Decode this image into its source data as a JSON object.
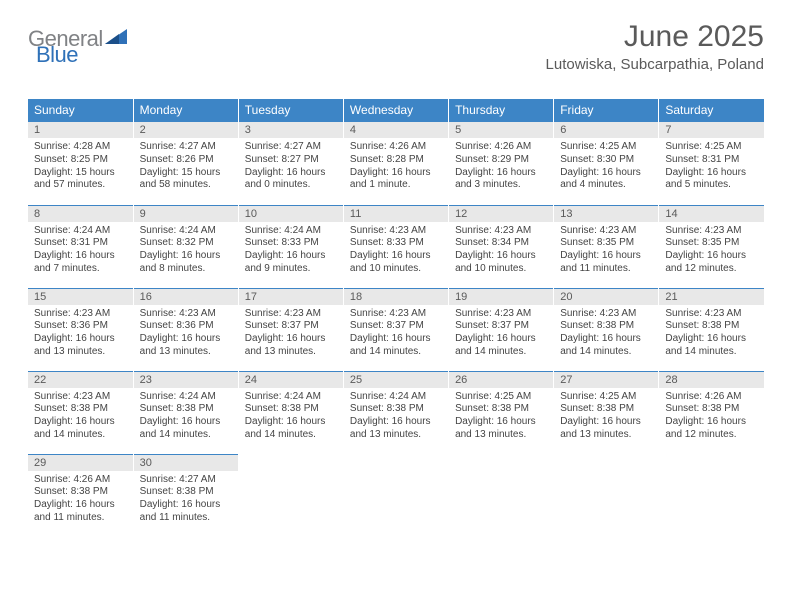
{
  "brand": {
    "part1": "General",
    "part2": "Blue"
  },
  "title": "June 2025",
  "location": "Lutowiska, Subcarpathia, Poland",
  "colors": {
    "header_bg": "#3d85c6",
    "header_text": "#ffffff",
    "daynum_bg": "#e8e8e8",
    "daynum_border": "#3d85c6",
    "body_text": "#444444",
    "title_text": "#5a5a5a",
    "logo_gray": "#808285",
    "logo_blue": "#2f71b8"
  },
  "weekdays": [
    "Sunday",
    "Monday",
    "Tuesday",
    "Wednesday",
    "Thursday",
    "Friday",
    "Saturday"
  ],
  "cells": [
    {
      "n": "1",
      "sr": "4:28 AM",
      "ss": "8:25 PM",
      "dl": "15 hours and 57 minutes."
    },
    {
      "n": "2",
      "sr": "4:27 AM",
      "ss": "8:26 PM",
      "dl": "15 hours and 58 minutes."
    },
    {
      "n": "3",
      "sr": "4:27 AM",
      "ss": "8:27 PM",
      "dl": "16 hours and 0 minutes."
    },
    {
      "n": "4",
      "sr": "4:26 AM",
      "ss": "8:28 PM",
      "dl": "16 hours and 1 minute."
    },
    {
      "n": "5",
      "sr": "4:26 AM",
      "ss": "8:29 PM",
      "dl": "16 hours and 3 minutes."
    },
    {
      "n": "6",
      "sr": "4:25 AM",
      "ss": "8:30 PM",
      "dl": "16 hours and 4 minutes."
    },
    {
      "n": "7",
      "sr": "4:25 AM",
      "ss": "8:31 PM",
      "dl": "16 hours and 5 minutes."
    },
    {
      "n": "8",
      "sr": "4:24 AM",
      "ss": "8:31 PM",
      "dl": "16 hours and 7 minutes."
    },
    {
      "n": "9",
      "sr": "4:24 AM",
      "ss": "8:32 PM",
      "dl": "16 hours and 8 minutes."
    },
    {
      "n": "10",
      "sr": "4:24 AM",
      "ss": "8:33 PM",
      "dl": "16 hours and 9 minutes."
    },
    {
      "n": "11",
      "sr": "4:23 AM",
      "ss": "8:33 PM",
      "dl": "16 hours and 10 minutes."
    },
    {
      "n": "12",
      "sr": "4:23 AM",
      "ss": "8:34 PM",
      "dl": "16 hours and 10 minutes."
    },
    {
      "n": "13",
      "sr": "4:23 AM",
      "ss": "8:35 PM",
      "dl": "16 hours and 11 minutes."
    },
    {
      "n": "14",
      "sr": "4:23 AM",
      "ss": "8:35 PM",
      "dl": "16 hours and 12 minutes."
    },
    {
      "n": "15",
      "sr": "4:23 AM",
      "ss": "8:36 PM",
      "dl": "16 hours and 13 minutes."
    },
    {
      "n": "16",
      "sr": "4:23 AM",
      "ss": "8:36 PM",
      "dl": "16 hours and 13 minutes."
    },
    {
      "n": "17",
      "sr": "4:23 AM",
      "ss": "8:37 PM",
      "dl": "16 hours and 13 minutes."
    },
    {
      "n": "18",
      "sr": "4:23 AM",
      "ss": "8:37 PM",
      "dl": "16 hours and 14 minutes."
    },
    {
      "n": "19",
      "sr": "4:23 AM",
      "ss": "8:37 PM",
      "dl": "16 hours and 14 minutes."
    },
    {
      "n": "20",
      "sr": "4:23 AM",
      "ss": "8:38 PM",
      "dl": "16 hours and 14 minutes."
    },
    {
      "n": "21",
      "sr": "4:23 AM",
      "ss": "8:38 PM",
      "dl": "16 hours and 14 minutes."
    },
    {
      "n": "22",
      "sr": "4:23 AM",
      "ss": "8:38 PM",
      "dl": "16 hours and 14 minutes."
    },
    {
      "n": "23",
      "sr": "4:24 AM",
      "ss": "8:38 PM",
      "dl": "16 hours and 14 minutes."
    },
    {
      "n": "24",
      "sr": "4:24 AM",
      "ss": "8:38 PM",
      "dl": "16 hours and 14 minutes."
    },
    {
      "n": "25",
      "sr": "4:24 AM",
      "ss": "8:38 PM",
      "dl": "16 hours and 13 minutes."
    },
    {
      "n": "26",
      "sr": "4:25 AM",
      "ss": "8:38 PM",
      "dl": "16 hours and 13 minutes."
    },
    {
      "n": "27",
      "sr": "4:25 AM",
      "ss": "8:38 PM",
      "dl": "16 hours and 13 minutes."
    },
    {
      "n": "28",
      "sr": "4:26 AM",
      "ss": "8:38 PM",
      "dl": "16 hours and 12 minutes."
    },
    {
      "n": "29",
      "sr": "4:26 AM",
      "ss": "8:38 PM",
      "dl": "16 hours and 11 minutes."
    },
    {
      "n": "30",
      "sr": "4:27 AM",
      "ss": "8:38 PM",
      "dl": "16 hours and 11 minutes."
    },
    null,
    null,
    null,
    null,
    null
  ],
  "labels": {
    "sunrise": "Sunrise:",
    "sunset": "Sunset:",
    "daylight": "Daylight:"
  }
}
